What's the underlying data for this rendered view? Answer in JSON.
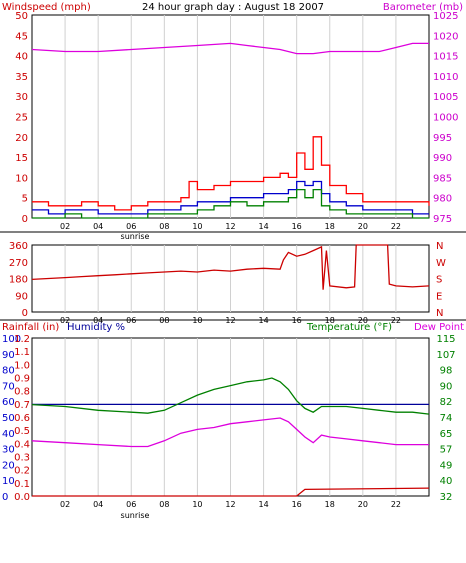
{
  "chart_data": [
    {
      "type": "line",
      "title": "24 hour graph day : August 18 2007",
      "ylabel": "Windspeed (mph)",
      "y2label": "Barometer (mb)",
      "colors": {
        "wind": "#ff0000",
        "gust": "#ff0000",
        "avg": "#0000cc",
        "min": "#008000",
        "barometer": "#dd00dd",
        "axis_left": "#cc0000",
        "axis_right": "#cc00cc"
      },
      "ylim": [
        0,
        50
      ],
      "yticks": [
        "0",
        "5",
        "10",
        "15",
        "20",
        "25",
        "30",
        "35",
        "40",
        "45",
        "50"
      ],
      "y2lim": [
        975,
        1025
      ],
      "y2ticks": [
        "975",
        "980",
        "985",
        "990",
        "995",
        "1000",
        "1005",
        "1010",
        "1015",
        "1020",
        "1025"
      ],
      "xticks": [
        "02",
        "04",
        "06",
        "08",
        "10",
        "12",
        "14",
        "16",
        "18",
        "20",
        "22"
      ],
      "sunrise_label": "sunrise",
      "series": [
        {
          "key": "gust",
          "x": [
            0,
            1,
            2,
            3,
            4,
            5,
            6,
            7,
            8,
            9,
            9.5,
            10,
            11,
            12,
            13,
            14,
            15,
            15.5,
            16,
            16.5,
            17,
            17.5,
            18,
            19,
            20,
            21,
            22,
            23,
            24
          ],
          "values": [
            4,
            3,
            3,
            4,
            3,
            2,
            3,
            4,
            4,
            5,
            9,
            7,
            8,
            9,
            9,
            10,
            11,
            10,
            16,
            12,
            20,
            13,
            8,
            6,
            4,
            4,
            4,
            4,
            3
          ]
        },
        {
          "key": "avg",
          "x": [
            0,
            1,
            2,
            3,
            4,
            5,
            6,
            7,
            8,
            9,
            10,
            11,
            12,
            13,
            14,
            15,
            15.5,
            16,
            16.5,
            17,
            17.5,
            18,
            19,
            20,
            21,
            22,
            23,
            24
          ],
          "values": [
            2,
            1,
            2,
            2,
            1,
            1,
            1,
            2,
            2,
            3,
            4,
            4,
            5,
            5,
            6,
            6,
            7,
            9,
            8,
            9,
            6,
            4,
            3,
            2,
            2,
            2,
            1,
            1
          ]
        },
        {
          "key": "min",
          "x": [
            0,
            1,
            2,
            3,
            4,
            5,
            6,
            7,
            8,
            9,
            10,
            11,
            12,
            13,
            14,
            15,
            15.5,
            16,
            16.5,
            17,
            17.5,
            18,
            19,
            20,
            21,
            22,
            23,
            24
          ],
          "values": [
            0,
            0,
            1,
            0,
            0,
            0,
            0,
            1,
            1,
            1,
            2,
            3,
            4,
            3,
            4,
            4,
            5,
            7,
            5,
            7,
            3,
            2,
            1,
            1,
            1,
            1,
            0,
            0
          ]
        },
        {
          "key": "barometer",
          "x": [
            0,
            2,
            4,
            6,
            8,
            10,
            12,
            13,
            14,
            15,
            16,
            17,
            18,
            19,
            20,
            21,
            22,
            23,
            24
          ],
          "values": [
            1016.5,
            1016,
            1016,
            1016.5,
            1017,
            1017.5,
            1018,
            1017.5,
            1017,
            1016.5,
            1015.5,
            1015.5,
            1016,
            1016,
            1016,
            1016,
            1017,
            1018,
            1018
          ]
        }
      ]
    },
    {
      "type": "line",
      "ylim": [
        0,
        360
      ],
      "yticks": [
        "0",
        "90",
        "180",
        "270",
        "360"
      ],
      "compass": [
        "N",
        "W",
        "S",
        "E",
        "N"
      ],
      "xticks": [
        "02",
        "04",
        "06",
        "08",
        "10",
        "12",
        "14",
        "16",
        "18",
        "20",
        "22"
      ],
      "colors": {
        "direction": "#cc0000"
      },
      "series": [
        {
          "key": "direction",
          "x": [
            0,
            1,
            2,
            3,
            4,
            5,
            6,
            7,
            8,
            9,
            10,
            11,
            12,
            13,
            14,
            15,
            15.2,
            15.5,
            16,
            16.5,
            17,
            17.5,
            17.6,
            17.8,
            18,
            19,
            19.5,
            19.6,
            20,
            21,
            21.5,
            21.6,
            22,
            23,
            24
          ],
          "values": [
            175,
            180,
            185,
            190,
            195,
            200,
            205,
            210,
            215,
            220,
            215,
            225,
            220,
            230,
            235,
            230,
            280,
            320,
            300,
            310,
            330,
            350,
            120,
            330,
            140,
            130,
            135,
            360,
            360,
            360,
            360,
            150,
            140,
            135,
            140
          ]
        }
      ]
    },
    {
      "type": "line",
      "ylabel": "Rainfall (in)",
      "ylabel2": "Humidity %",
      "y2label": "Temperature (°F)",
      "y2label2": "Dew Point",
      "colors": {
        "rain": "#cc0000",
        "humidity": "#000099",
        "temperature": "#008000",
        "dewpoint": "#dd00dd",
        "humidity_axis": "#0000cc",
        "rain_axis": "#cc0000",
        "temp_axis": "#008000"
      },
      "humidity_ylim": [
        0,
        100
      ],
      "humidity_yticks": [
        "0",
        "10",
        "20",
        "30",
        "40",
        "50",
        "60",
        "70",
        "80",
        "90",
        "100"
      ],
      "rain_ylim": [
        0,
        1.2
      ],
      "rain_yticks": [
        "0.0",
        "0.1",
        "0.2",
        "0.3",
        "0.4",
        "0.5",
        "0.6",
        "0.7",
        "0.8",
        "0.9",
        "1.0",
        "1.1",
        "1.2"
      ],
      "temp_ylim": [
        32,
        115
      ],
      "temp_yticks": [
        "32",
        "40",
        "49",
        "57",
        "65",
        "74",
        "82",
        "90",
        "98",
        "107",
        "115"
      ],
      "xticks": [
        "02",
        "04",
        "06",
        "08",
        "10",
        "12",
        "14",
        "16",
        "18",
        "20",
        "22"
      ],
      "sunrise_label": "sunrise",
      "series": [
        {
          "key": "humidity",
          "x": [
            0,
            24
          ],
          "values": [
            58,
            58
          ]
        },
        {
          "key": "temperature",
          "x": [
            0,
            2,
            4,
            6,
            7,
            8,
            9,
            10,
            11,
            12,
            13,
            14,
            14.5,
            15,
            15.5,
            16,
            16.5,
            17,
            17.5,
            18,
            19,
            20,
            21,
            22,
            23,
            24
          ],
          "values": [
            80,
            79,
            77,
            76,
            75.5,
            77,
            81,
            85,
            88,
            90,
            92,
            93,
            94,
            92,
            88,
            82,
            78,
            76,
            79,
            79,
            79,
            78,
            77,
            76,
            76,
            75
          ]
        },
        {
          "key": "dewpoint",
          "x": [
            0,
            2,
            4,
            6,
            7,
            8,
            9,
            10,
            11,
            12,
            13,
            14,
            15,
            15.5,
            16,
            16.5,
            17,
            17.5,
            18,
            19,
            20,
            21,
            22,
            23,
            24
          ],
          "values": [
            61,
            60,
            59,
            58,
            58,
            61,
            65,
            67,
            68,
            70,
            71,
            72,
            73,
            71,
            67,
            63,
            60,
            64,
            63,
            62,
            61,
            60,
            59,
            59,
            59
          ]
        },
        {
          "key": "rain",
          "x": [
            0,
            16,
            16.5,
            24
          ],
          "values": [
            0,
            0,
            0.05,
            0.06
          ]
        }
      ]
    }
  ]
}
